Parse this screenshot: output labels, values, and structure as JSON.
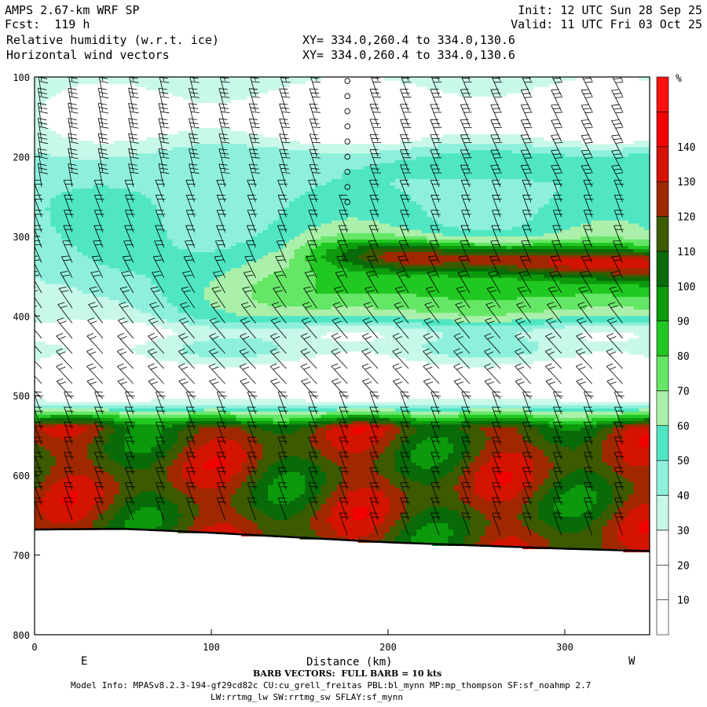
{
  "header": {
    "line1_left": "AMPS 2.67-km WRF SP",
    "line1_right": "Init: 12 UTC Sun 28 Sep 25",
    "line2_left": "Fcst:  119 h",
    "line2_right": "Valid: 11 UTC Fri 03 Oct 25",
    "line3_left": "Relative humidity (w.r.t. ice)",
    "line3_right": "XY= 334.0,260.4 to 334.0,130.6",
    "line4_left": "Horizontal wind vectors",
    "line4_right": "XY= 334.0,260.4 to 334.0,130.6"
  },
  "footer": {
    "barb_note": "BARB VECTORS:  FULL BARB = 10 kts",
    "model_info": "Model Info: MPASv8.2.3-194-gf29cd82c CU:cu_grell_freitas PBL:bl_mynn MP:mp_thompson SF:sf_noahmp 2.7",
    "model_info2": "LW:rrtmg_lw SW:rrtmg_sw SFLAY:sf_mynn"
  },
  "chart_data": {
    "type": "heatmap",
    "title": "Relative humidity (w.r.t. ice)",
    "overlay": "Horizontal wind vectors",
    "xlabel": "Distance (km)",
    "x_end_labels": [
      "E",
      "W"
    ],
    "x_ticks": [
      "0",
      "100",
      "200",
      "300"
    ],
    "x_tick_values": [
      0,
      100,
      200,
      300
    ],
    "xlim": [
      0,
      348
    ],
    "y_ticks": [
      "100",
      "200",
      "300",
      "400",
      "500",
      "600",
      "700",
      "800"
    ],
    "y_tick_values": [
      100,
      200,
      300,
      400,
      500,
      600,
      700,
      800
    ],
    "ylim": [
      100,
      800
    ],
    "y_inverted": true,
    "colorbar": {
      "unit": "%",
      "tick_labels": [
        "10",
        "20",
        "30",
        "40",
        "50",
        "60",
        "70",
        "80",
        "90",
        "100",
        "110",
        "120",
        "130",
        "140"
      ],
      "levels": [
        0,
        10,
        20,
        30,
        40,
        50,
        60,
        70,
        80,
        90,
        100,
        110,
        120,
        130,
        140,
        150
      ],
      "colors": [
        "#ffffff",
        "#ffffff",
        "#ffffff",
        "#c8f8ea",
        "#8ef0dc",
        "#50e6c4",
        "#aaf0aa",
        "#66e666",
        "#22c822",
        "#0c9a0c",
        "#086a08",
        "#3c5a00",
        "#a02800",
        "#d41400",
        "#f20000",
        "#ff1010"
      ]
    },
    "terrain_pressure": [
      {
        "x": 0,
        "p": 668
      },
      {
        "x": 50,
        "p": 667
      },
      {
        "x": 100,
        "p": 672
      },
      {
        "x": 150,
        "p": 678
      },
      {
        "x": 200,
        "p": 684
      },
      {
        "x": 250,
        "p": 688
      },
      {
        "x": 300,
        "p": 692
      },
      {
        "x": 348,
        "p": 695
      }
    ]
  }
}
